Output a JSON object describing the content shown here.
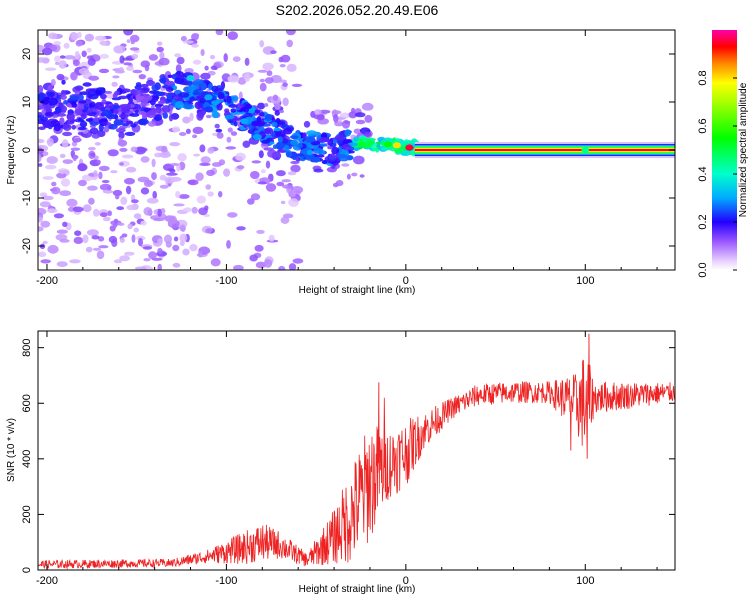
{
  "title": "S202.2026.052.20.49.E06",
  "chart_data": [
    {
      "type": "heatmap",
      "name": "spectrogram",
      "xlabel": "Height of straight line (km)",
      "ylabel": "Frequency (Hz)",
      "xlim": [
        -205,
        150
      ],
      "ylim": [
        -25,
        25
      ],
      "xticks": [
        -200,
        -100,
        0,
        100
      ],
      "yticks": [
        -20,
        -10,
        0,
        10,
        20
      ],
      "colorbar": {
        "label": "Normalized spectral amplitude",
        "range": [
          0,
          1
        ],
        "ticks": [
          0.0,
          0.2,
          0.4,
          0.6,
          0.8
        ]
      },
      "ridge": [
        {
          "x": -200,
          "f": 8
        },
        {
          "x": -150,
          "f": 9
        },
        {
          "x": -120,
          "f": 13
        },
        {
          "x": -100,
          "f": 9
        },
        {
          "x": -80,
          "f": 5
        },
        {
          "x": -60,
          "f": 1
        },
        {
          "x": -40,
          "f": 0
        },
        {
          "x": -25,
          "f": 1.5
        },
        {
          "x": 0,
          "f": 0.5
        },
        {
          "x": 150,
          "f": 0
        }
      ],
      "tone": {
        "x_start": 5,
        "x_end": 150,
        "f": 0
      },
      "hotspots": [
        {
          "x": -120,
          "f": 15,
          "amp": 0.35
        },
        {
          "x": -110,
          "f": 11,
          "amp": 0.3
        },
        {
          "x": -90,
          "f": 6,
          "amp": 0.3
        },
        {
          "x": -50,
          "f": -2,
          "amp": 0.25
        },
        {
          "x": -20,
          "f": 1.5,
          "amp": 0.5
        },
        {
          "x": -10,
          "f": 1.2,
          "amp": 0.55
        },
        {
          "x": -5,
          "f": 1,
          "amp": 0.8
        },
        {
          "x": 2,
          "f": 0.5,
          "amp": 0.95
        },
        {
          "x": 100,
          "f": 0,
          "amp": 0.45
        }
      ]
    },
    {
      "type": "line",
      "name": "snr",
      "xlabel": "Height of straight line (km)",
      "ylabel": "SNR (10 * v/v)",
      "xlim": [
        -205,
        150
      ],
      "ylim": [
        0,
        860
      ],
      "xticks": [
        -200,
        -100,
        0,
        100
      ],
      "yticks": [
        0,
        200,
        400,
        600,
        800
      ],
      "color": "#ee2222",
      "envelope": [
        {
          "x": -205,
          "mean": 20,
          "amp": 15
        },
        {
          "x": -130,
          "mean": 25,
          "amp": 15
        },
        {
          "x": -110,
          "mean": 50,
          "amp": 25
        },
        {
          "x": -90,
          "mean": 80,
          "amp": 60
        },
        {
          "x": -80,
          "mean": 100,
          "amp": 70
        },
        {
          "x": -70,
          "mean": 90,
          "amp": 50
        },
        {
          "x": -55,
          "mean": 35,
          "amp": 25
        },
        {
          "x": -40,
          "mean": 120,
          "amp": 100
        },
        {
          "x": -30,
          "mean": 200,
          "amp": 180
        },
        {
          "x": -20,
          "mean": 320,
          "amp": 220
        },
        {
          "x": -10,
          "mean": 380,
          "amp": 130
        },
        {
          "x": 0,
          "mean": 420,
          "amp": 120
        },
        {
          "x": 10,
          "mean": 500,
          "amp": 70
        },
        {
          "x": 25,
          "mean": 580,
          "amp": 40
        },
        {
          "x": 40,
          "mean": 630,
          "amp": 40
        },
        {
          "x": 60,
          "mean": 640,
          "amp": 40
        },
        {
          "x": 80,
          "mean": 640,
          "amp": 40
        },
        {
          "x": 95,
          "mean": 600,
          "amp": 110
        },
        {
          "x": 100,
          "mean": 600,
          "amp": 200
        },
        {
          "x": 105,
          "mean": 620,
          "amp": 60
        },
        {
          "x": 150,
          "mean": 640,
          "amp": 35
        }
      ],
      "peaks": [
        {
          "x": -15,
          "y": 675
        },
        {
          "x": -12,
          "y": 620
        },
        {
          "x": 102,
          "y": 850
        },
        {
          "x": 101,
          "y": 400
        },
        {
          "x": 92,
          "y": 430
        }
      ]
    }
  ]
}
